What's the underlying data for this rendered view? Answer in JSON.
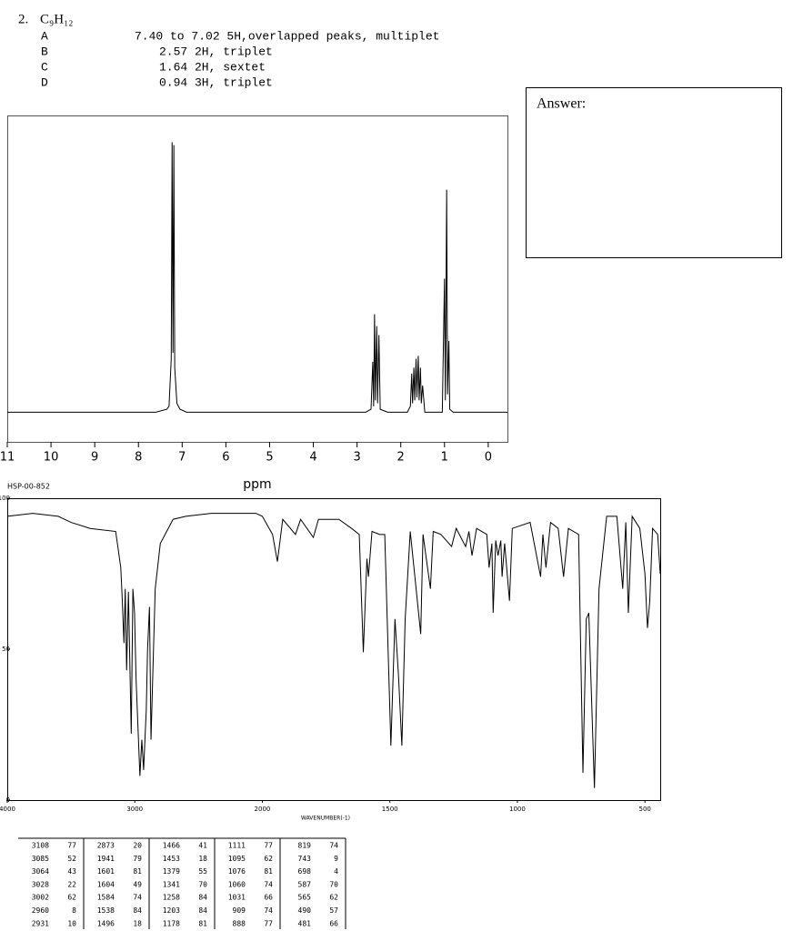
{
  "header": {
    "number": "2.",
    "formula": "C₉H₁₂"
  },
  "nmr_table": [
    {
      "label": "A",
      "text": "7.40 to 7.02 5H,overlapped peaks, multiplet"
    },
    {
      "label": "B",
      "text": "2.57 2H, triplet"
    },
    {
      "label": "C",
      "text": "1.64 2H, sextet"
    },
    {
      "label": "D",
      "text": "0.94 3H, triplet"
    }
  ],
  "answer_label": "Answer:",
  "ir_code": "HSP-00-852",
  "chart_data": [
    {
      "type": "line",
      "color": "#000000",
      "xlabel": "ppm",
      "xlim": [
        11,
        -0.44
      ],
      "xticks": [
        11,
        10,
        9,
        8,
        7,
        6,
        5,
        4,
        3,
        2,
        1,
        0
      ],
      "ylim": [
        -10,
        100
      ],
      "x": [
        11,
        7.6,
        7.35,
        7.3,
        7.25,
        7.23,
        7.21,
        7.19,
        7.17,
        7.12,
        7.05,
        6.9,
        2.8,
        2.68,
        2.64,
        2.62,
        2.6,
        2.58,
        2.55,
        2.53,
        2.5,
        2.47,
        2.3,
        1.85,
        1.78,
        1.75,
        1.73,
        1.7,
        1.68,
        1.65,
        1.63,
        1.6,
        1.58,
        1.55,
        1.53,
        1.5,
        1.45,
        1.05,
        1.0,
        0.98,
        0.95,
        0.93,
        0.9,
        0.88,
        0.8,
        -0.44
      ],
      "values": [
        0,
        0,
        1,
        2,
        18,
        91,
        20,
        90,
        15,
        3,
        1,
        0,
        0,
        1,
        17,
        2,
        33,
        4,
        29,
        3,
        26,
        1,
        0,
        0,
        2,
        13,
        3,
        15,
        4,
        18,
        5,
        19,
        4,
        15,
        3,
        9,
        0,
        0,
        45,
        4,
        75,
        6,
        24,
        1,
        0,
        0
      ]
    },
    {
      "type": "line",
      "color": "#000000",
      "xlabel": "WAVENUMBER(-1)",
      "xlim": [
        4000,
        440
      ],
      "xticks": [
        4000,
        3000,
        2000,
        1500,
        1000,
        500
      ],
      "ylim": [
        0,
        100
      ],
      "yticks": [
        0,
        50,
        100
      ],
      "x": [
        4000,
        3800,
        3600,
        3500,
        3350,
        3150,
        3110,
        3100,
        3085,
        3075,
        3064,
        3050,
        3028,
        3015,
        3002,
        2990,
        2960,
        2945,
        2931,
        2910,
        2900,
        2885,
        2873,
        2860,
        2840,
        2800,
        2700,
        2600,
        2400,
        2200,
        2050,
        2000,
        1960,
        1941,
        1920,
        1870,
        1850,
        1800,
        1780,
        1700,
        1650,
        1620,
        1604,
        1590,
        1584,
        1570,
        1540,
        1520,
        1496,
        1480,
        1466,
        1453,
        1440,
        1420,
        1379,
        1370,
        1341,
        1330,
        1300,
        1258,
        1240,
        1203,
        1190,
        1178,
        1160,
        1120,
        1111,
        1100,
        1095,
        1085,
        1076,
        1065,
        1060,
        1050,
        1031,
        1020,
        950,
        909,
        900,
        888,
        870,
        840,
        819,
        800,
        760,
        743,
        730,
        720,
        698,
        680,
        650,
        610,
        587,
        575,
        565,
        550,
        520,
        500,
        490,
        481,
        470,
        450,
        440
      ],
      "values": [
        94,
        95,
        94,
        92,
        90,
        89,
        77,
        68,
        52,
        70,
        43,
        69,
        22,
        70,
        62,
        40,
        8,
        20,
        10,
        30,
        50,
        64,
        20,
        40,
        70,
        85,
        93,
        94,
        95,
        95,
        95,
        94,
        88,
        79,
        93,
        88,
        93,
        87,
        93,
        93,
        90,
        88,
        49,
        80,
        74,
        89,
        88,
        88,
        18,
        60,
        41,
        18,
        60,
        89,
        55,
        88,
        70,
        89,
        88,
        84,
        90,
        84,
        89,
        81,
        90,
        88,
        77,
        85,
        62,
        86,
        81,
        86,
        74,
        85,
        66,
        90,
        92,
        74,
        88,
        77,
        92,
        90,
        74,
        90,
        88,
        9,
        60,
        62,
        4,
        70,
        94,
        94,
        70,
        92,
        62,
        94,
        90,
        75,
        57,
        66,
        90,
        88,
        75
      ]
    }
  ],
  "ir_table": {
    "rows": [
      [
        3108,
        77,
        2873,
        20,
        1466,
        41,
        1111,
        77,
        819,
        74
      ],
      [
        3085,
        52,
        1941,
        79,
        1453,
        18,
        1095,
        62,
        743,
        9
      ],
      [
        3064,
        43,
        1601,
        81,
        1379,
        55,
        1076,
        81,
        698,
        4
      ],
      [
        3028,
        22,
        1604,
        49,
        1341,
        70,
        1060,
        74,
        587,
        70
      ],
      [
        3002,
        62,
        1584,
        74,
        1258,
        84,
        1031,
        66,
        565,
        62
      ],
      [
        2960,
        8,
        1538,
        84,
        1203,
        84,
        909,
        74,
        490,
        57
      ],
      [
        2931,
        10,
        1496,
        18,
        1178,
        81,
        888,
        77,
        481,
        66
      ]
    ]
  }
}
